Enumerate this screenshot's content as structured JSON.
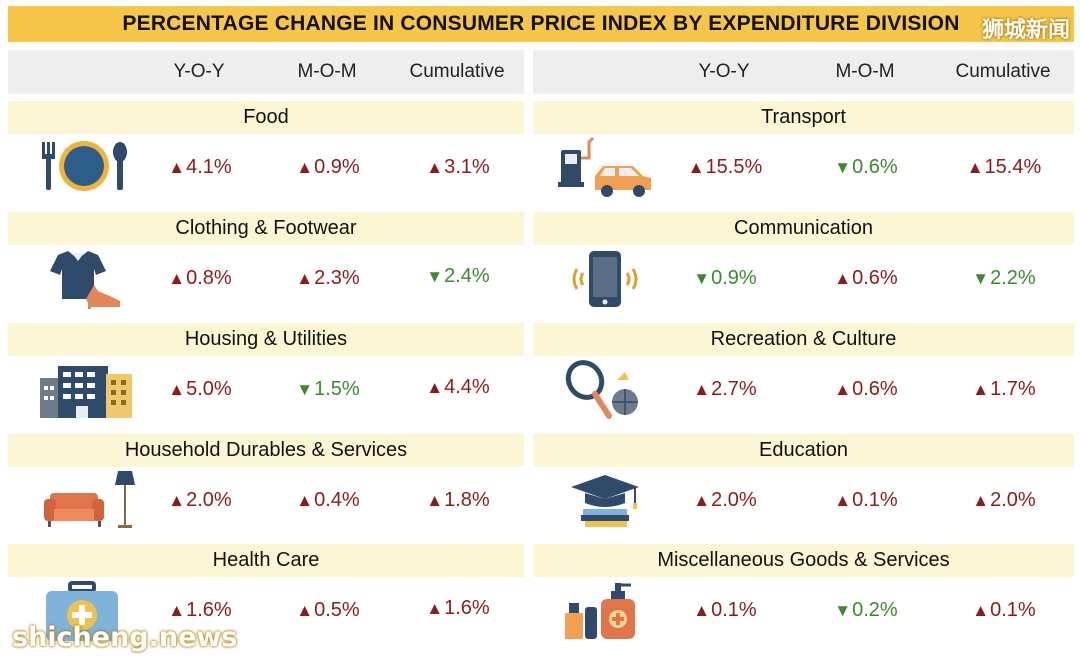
{
  "title": "PERCENTAGE CHANGE IN CONSUMER PRICE INDEX BY EXPENDITURE DIVISION",
  "watermarks": {
    "top_right": "狮城新闻",
    "bottom_left": "shicheng.news"
  },
  "headers": {
    "yoy": "Y-O-Y",
    "mom": "M-O-M",
    "cumulative": "Cumulative"
  },
  "colors": {
    "title_bg": "#f6c64b",
    "increase": "#8b1c1c",
    "decrease": "#3c8a2e",
    "label_bg": "#fdf6d4",
    "header_bg": "#eeeeee"
  },
  "left": [
    {
      "name": "Food",
      "icon": "plate-cutlery-icon",
      "yoy": {
        "dir": "up",
        "text": "4.1%"
      },
      "mom": {
        "dir": "up",
        "text": "0.9%"
      },
      "cumulative": {
        "dir": "up",
        "text": "3.1%"
      }
    },
    {
      "name": "Clothing & Footwear",
      "icon": "shirt-shoe-icon",
      "yoy": {
        "dir": "up",
        "text": "0.8%"
      },
      "mom": {
        "dir": "up",
        "text": "2.3%"
      },
      "cumulative": {
        "dir": "down",
        "text": "2.4%"
      }
    },
    {
      "name": "Housing & Utilities",
      "icon": "buildings-icon",
      "yoy": {
        "dir": "up",
        "text": "5.0%"
      },
      "mom": {
        "dir": "down",
        "text": "1.5%"
      },
      "cumulative": {
        "dir": "up",
        "text": "4.4%"
      }
    },
    {
      "name": "Household Durables & Services",
      "icon": "sofa-lamp-icon",
      "yoy": {
        "dir": "up",
        "text": "2.0%"
      },
      "mom": {
        "dir": "up",
        "text": "0.4%"
      },
      "cumulative": {
        "dir": "up",
        "text": "1.8%"
      }
    },
    {
      "name": "Health Care",
      "icon": "first-aid-kit-icon",
      "yoy": {
        "dir": "up",
        "text": "1.6%"
      },
      "mom": {
        "dir": "up",
        "text": "0.5%"
      },
      "cumulative": {
        "dir": "up",
        "text": "1.6%"
      }
    }
  ],
  "right": [
    {
      "name": "Transport",
      "icon": "fuel-pump-car-icon",
      "yoy": {
        "dir": "up",
        "text": "15.5%"
      },
      "mom": {
        "dir": "down",
        "text": "0.6%"
      },
      "cumulative": {
        "dir": "up",
        "text": "15.4%"
      }
    },
    {
      "name": "Communication",
      "icon": "mobile-phone-icon",
      "yoy": {
        "dir": "down",
        "text": "0.9%"
      },
      "mom": {
        "dir": "up",
        "text": "0.6%"
      },
      "cumulative": {
        "dir": "down",
        "text": "2.2%"
      }
    },
    {
      "name": "Recreation & Culture",
      "icon": "tennis-racket-ball-icon",
      "yoy": {
        "dir": "up",
        "text": "2.7%"
      },
      "mom": {
        "dir": "up",
        "text": "0.6%"
      },
      "cumulative": {
        "dir": "up",
        "text": "1.7%"
      }
    },
    {
      "name": "Education",
      "icon": "graduation-cap-books-icon",
      "yoy": {
        "dir": "up",
        "text": "2.0%"
      },
      "mom": {
        "dir": "up",
        "text": "0.1%"
      },
      "cumulative": {
        "dir": "up",
        "text": "2.0%"
      }
    },
    {
      "name": "Miscellaneous Goods & Services",
      "icon": "cosmetics-bottles-icon",
      "yoy": {
        "dir": "up",
        "text": "0.1%"
      },
      "mom": {
        "dir": "down",
        "text": "0.2%"
      },
      "cumulative": {
        "dir": "up",
        "text": "0.1%"
      }
    }
  ]
}
